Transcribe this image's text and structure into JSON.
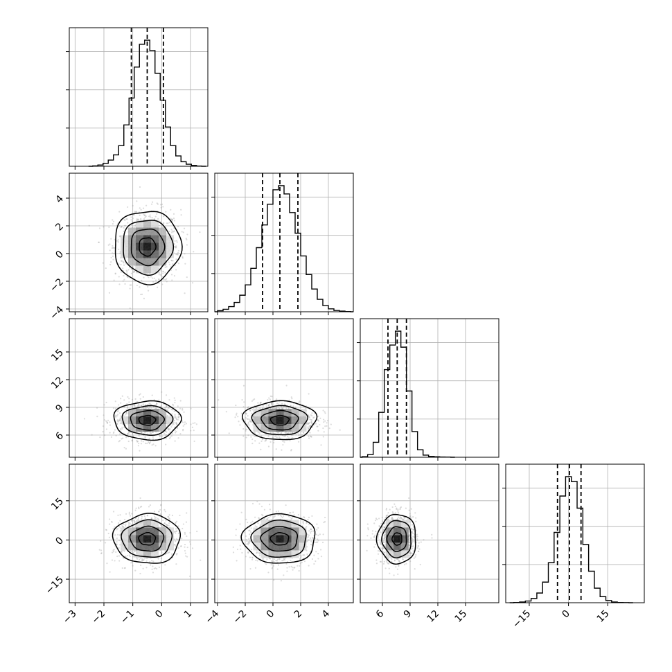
{
  "colors": {
    "frame": "#000000",
    "grid": "#b0b0b0",
    "hist": "#000000",
    "quantile": "#000000",
    "points": "#9a9a9a",
    "density": [
      "#d8d8d8",
      "#b4b4b4",
      "#8a8a8a",
      "#5a5a5a",
      "#2e2e2e",
      "#000000"
    ]
  },
  "chart_data": {
    "type": "corner",
    "title": "",
    "xlabel": "",
    "ylabel": "",
    "grid": true,
    "parameters": [
      {
        "range": [
          -3.2,
          1.6
        ],
        "ticks": [
          -3,
          -2,
          -1,
          0,
          1
        ],
        "tick_labels": [
          "−3",
          "−2",
          "−1",
          "0",
          "1"
        ],
        "mean": -0.5,
        "sd": 0.55,
        "quantiles": [
          -1.05,
          -0.5,
          0.06
        ]
      },
      {
        "range": [
          -4.2,
          5.8
        ],
        "ticks": [
          -4,
          -2,
          0,
          2,
          4
        ],
        "tick_labels": [
          "−4",
          "−2",
          "0",
          "2",
          "4"
        ],
        "mean": 0.5,
        "sd": 1.25,
        "quantiles": [
          -0.75,
          0.5,
          1.8
        ]
      },
      {
        "range": [
          3.6,
          18.6
        ],
        "ticks": [
          6,
          9,
          12,
          15
        ],
        "tick_labels": [
          "6",
          "9",
          "12",
          "15"
        ],
        "mean": 7.6,
        "sd": 1.0,
        "quantiles": [
          6.6,
          7.6,
          8.6
        ]
      },
      {
        "range": [
          -24,
          29
        ],
        "ticks": [
          -15,
          0,
          15
        ],
        "tick_labels": [
          "−15",
          "0",
          "15"
        ],
        "mean": 0.4,
        "sd": 4.5,
        "quantiles": [
          -4.2,
          0.4,
          4.8
        ]
      }
    ],
    "histograms": [
      {
        "param": 0,
        "bin_width": 0.18,
        "bin_centers": [
          -2.3,
          -2.12,
          -1.94,
          -1.76,
          -1.58,
          -1.4,
          -1.22,
          -1.04,
          -0.86,
          -0.68,
          -0.5,
          -0.32,
          -0.14,
          0.04,
          0.22,
          0.4,
          0.58,
          0.76,
          0.94,
          1.12,
          1.3
        ],
        "counts": [
          2,
          6,
          14,
          30,
          55,
          100,
          200,
          330,
          480,
          590,
          610,
          560,
          450,
          320,
          190,
          100,
          50,
          22,
          10,
          4,
          1
        ]
      },
      {
        "param": 1,
        "bin_width": 0.4,
        "bin_centers": [
          -3.8,
          -3.4,
          -3.0,
          -2.6,
          -2.2,
          -1.8,
          -1.4,
          -1.0,
          -0.6,
          -0.2,
          0.2,
          0.6,
          1.0,
          1.4,
          1.8,
          2.2,
          2.6,
          3.0,
          3.4,
          3.8,
          4.2,
          4.6,
          5.0,
          5.4
        ],
        "counts": [
          5,
          12,
          25,
          45,
          80,
          130,
          210,
          310,
          420,
          520,
          590,
          610,
          570,
          480,
          380,
          270,
          180,
          110,
          60,
          30,
          14,
          6,
          3,
          1
        ]
      },
      {
        "param": 2,
        "bin_width": 0.6,
        "bin_centers": [
          4.1,
          4.7,
          5.3,
          5.9,
          6.5,
          7.1,
          7.7,
          8.3,
          8.9,
          9.5,
          10.1,
          10.7,
          11.3,
          11.9,
          12.5,
          13.1
        ],
        "counts": [
          5,
          25,
          140,
          420,
          820,
          1050,
          1180,
          1030,
          620,
          240,
          70,
          20,
          8,
          4,
          2,
          1
        ]
      },
      {
        "param": 3,
        "bin_width": 2.2,
        "bin_centers": [
          -19.8,
          -17.6,
          -15.4,
          -13.2,
          -11.0,
          -8.8,
          -6.6,
          -4.4,
          -2.2,
          0.0,
          2.2,
          4.4,
          6.6,
          8.8,
          11.0,
          13.2,
          15.4,
          17.6,
          19.8,
          22.0
        ],
        "counts": [
          2,
          6,
          14,
          35,
          80,
          170,
          330,
          580,
          880,
          1040,
          1000,
          780,
          480,
          260,
          120,
          50,
          18,
          6,
          2,
          1
        ]
      }
    ],
    "pairs": [
      {
        "x_param": 0,
        "y_param": 1,
        "x_center": -0.5,
        "y_center": 0.5,
        "x_sd": 0.55,
        "y_sd": 1.25
      },
      {
        "x_param": 0,
        "y_param": 2,
        "x_center": -0.5,
        "y_center": 7.6,
        "x_sd": 0.55,
        "y_sd": 1.0
      },
      {
        "x_param": 1,
        "y_param": 2,
        "x_center": 0.5,
        "y_center": 7.6,
        "x_sd": 1.25,
        "y_sd": 1.0
      },
      {
        "x_param": 0,
        "y_param": 3,
        "x_center": -0.5,
        "y_center": 0.4,
        "x_sd": 0.55,
        "y_sd": 4.5
      },
      {
        "x_param": 1,
        "y_param": 3,
        "x_center": 0.5,
        "y_center": 0.4,
        "x_sd": 1.25,
        "y_sd": 4.5
      },
      {
        "x_param": 2,
        "y_param": 3,
        "x_center": 7.6,
        "y_center": 0.4,
        "x_sd": 1.0,
        "y_sd": 4.5
      }
    ],
    "contour_sigma_levels": [
      0.5,
      1.0,
      1.5,
      2.0
    ]
  }
}
